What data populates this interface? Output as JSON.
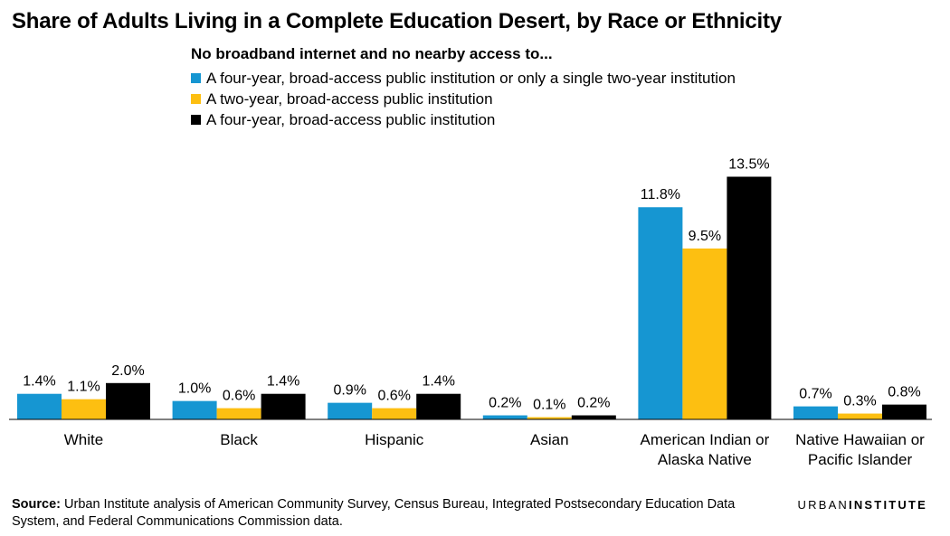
{
  "title": "Share of Adults Living in a Complete Education Desert, by Race or Ethnicity",
  "legend": {
    "title": "No broadband internet and no nearby access to...",
    "items": [
      {
        "label": "A four-year, broad-access public institution or only a single two-year institution",
        "color": "#1696d2"
      },
      {
        "label": "A two-year, broad-access public institution",
        "color": "#fdbf11"
      },
      {
        "label": "A four-year, broad-access public institution",
        "color": "#000000"
      }
    ]
  },
  "chart_data": {
    "type": "bar",
    "categories": [
      [
        "White"
      ],
      [
        "Black"
      ],
      [
        "Hispanic"
      ],
      [
        "Asian"
      ],
      [
        "American Indian or",
        "Alaska Native"
      ],
      [
        "Native Hawaiian or",
        "Pacific Islander"
      ]
    ],
    "series": [
      {
        "name": "A four-year, broad-access public institution or only a single two-year institution",
        "color": "#1696d2",
        "values": [
          1.4,
          1.0,
          0.9,
          0.2,
          11.8,
          0.7
        ],
        "labels": [
          "1.4%",
          "1.0%",
          "0.9%",
          "0.2%",
          "11.8%",
          "0.7%"
        ]
      },
      {
        "name": "A two-year, broad-access public institution",
        "color": "#fdbf11",
        "values": [
          1.1,
          0.6,
          0.6,
          0.1,
          9.5,
          0.3
        ],
        "labels": [
          "1.1%",
          "0.6%",
          "0.6%",
          "0.1%",
          "9.5%",
          "0.3%"
        ]
      },
      {
        "name": "A four-year, broad-access public institution",
        "color": "#000000",
        "values": [
          2.0,
          1.4,
          1.4,
          0.2,
          13.5,
          0.8
        ],
        "labels": [
          "2.0%",
          "1.4%",
          "1.4%",
          "0.2%",
          "13.5%",
          "0.8%"
        ]
      }
    ],
    "ylim": [
      0,
      13.5
    ],
    "grid": false,
    "legend_position": "top"
  },
  "source": {
    "label": "Source:",
    "text": "Urban Institute analysis of American Community Survey, Census Bureau, Integrated Postsecondary Education Data System, and Federal Communications Commission data."
  },
  "logo": {
    "part1": "URBAN",
    "part2": "INSTITUTE"
  }
}
